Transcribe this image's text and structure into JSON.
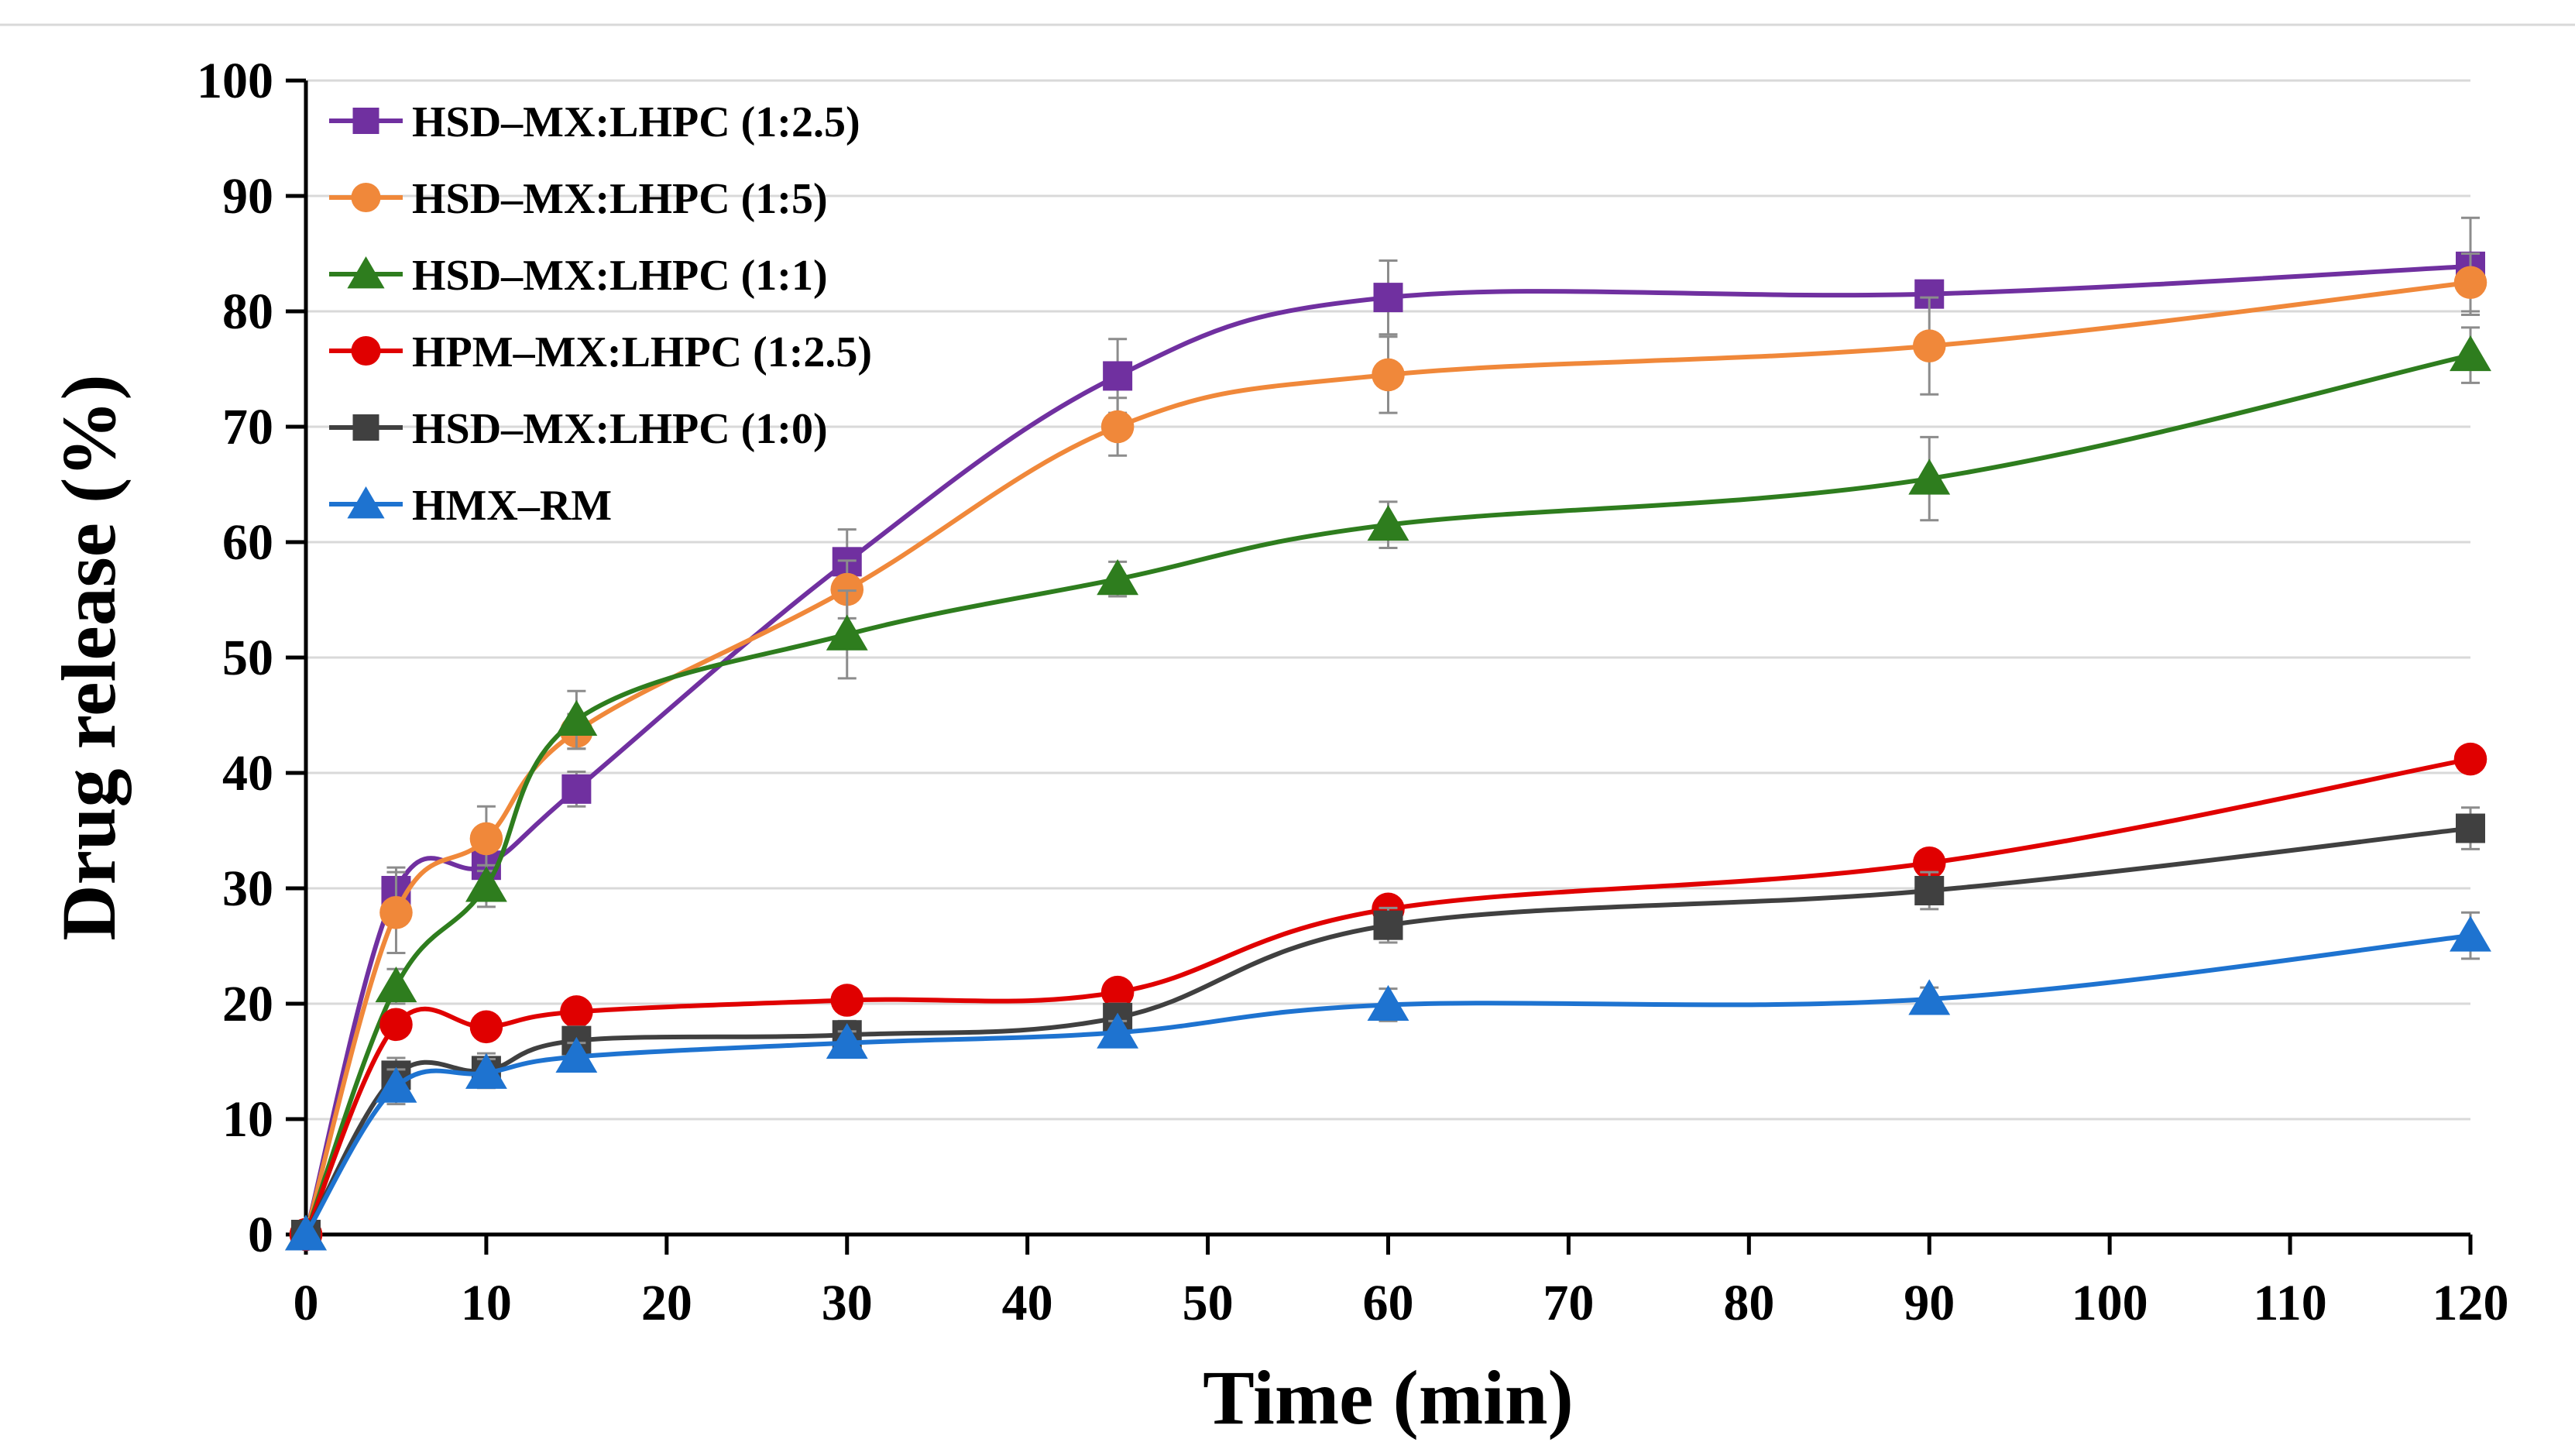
{
  "chart_data": {
    "type": "line",
    "title": "",
    "xlabel": "Time (min)",
    "ylabel": "Drug release (%)",
    "xlim": [
      0,
      120
    ],
    "ylim": [
      0,
      100
    ],
    "xticks": [
      0,
      10,
      20,
      30,
      40,
      50,
      60,
      70,
      80,
      90,
      100,
      110,
      120
    ],
    "yticks": [
      0,
      10,
      20,
      30,
      40,
      50,
      60,
      70,
      80,
      90,
      100
    ],
    "grid": "horizontal",
    "legend_position": "top-left",
    "x": [
      0,
      5,
      10,
      15,
      30,
      45,
      60,
      90,
      120
    ],
    "series": [
      {
        "name": "HSD–MX:LHPC (1:2.5)",
        "color": "#7030A0",
        "marker": "square",
        "values": [
          0,
          29.8,
          32.0,
          38.6,
          58.3,
          74.4,
          81.2,
          81.5,
          83.9
        ],
        "errors": [
          0,
          2.0,
          1.5,
          1.5,
          2.8,
          3.2,
          3.2,
          0.5,
          4.2
        ]
      },
      {
        "name": "HSD–MX:LHPC (1:5)",
        "color": "#F0883A",
        "marker": "circle",
        "values": [
          0,
          27.9,
          34.3,
          43.6,
          55.9,
          70.0,
          74.5,
          77.0,
          82.5
        ],
        "errors": [
          0,
          3.5,
          2.8,
          1.5,
          2.5,
          2.5,
          3.3,
          4.2,
          2.5
        ]
      },
      {
        "name": "HSD–MX:LHPC (1:1)",
        "color": "#2E7D1E",
        "marker": "triangle",
        "values": [
          0,
          21.5,
          30.2,
          44.6,
          52.0,
          56.8,
          61.5,
          65.5,
          76.2
        ],
        "errors": [
          0,
          1.5,
          1.8,
          2.5,
          3.8,
          1.5,
          2.0,
          3.6,
          2.4
        ]
      },
      {
        "name": "HPM–MX:LHPC (1:2.5)",
        "color": "#E00000",
        "marker": "circle",
        "values": [
          0,
          18.2,
          18.0,
          19.3,
          20.3,
          21.0,
          28.2,
          32.2,
          41.2
        ],
        "errors": [
          0,
          1.0,
          1.0,
          1.0,
          1.0,
          1.0,
          1.0,
          1.0,
          1.0
        ]
      },
      {
        "name": "HSD–MX:LHPC (1:0)",
        "color": "#404040",
        "marker": "square",
        "values": [
          0,
          13.8,
          14.2,
          16.8,
          17.3,
          18.8,
          26.8,
          29.8,
          35.2
        ],
        "errors": [
          0,
          1.5,
          1.5,
          1.2,
          1.2,
          1.2,
          1.5,
          1.6,
          1.8
        ]
      },
      {
        "name": "HMX–RM",
        "color": "#1E73D0",
        "marker": "triangle",
        "values": [
          0,
          12.8,
          14.0,
          15.4,
          16.6,
          17.5,
          19.9,
          20.4,
          25.9
        ],
        "errors": [
          0,
          1.5,
          1.2,
          1.2,
          1.0,
          1.0,
          1.4,
          1.0,
          2.0
        ]
      }
    ]
  }
}
